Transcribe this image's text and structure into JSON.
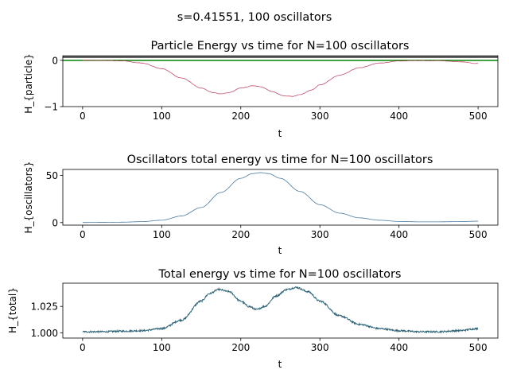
{
  "suptitle": "s=0.41551, 100 oscillators",
  "chart_data": [
    {
      "type": "line",
      "title": "Particle Energy vs time for N=100 oscillators",
      "xlabel": "t",
      "ylabel": "H_{particle}",
      "xlim": [
        -25,
        525
      ],
      "ylim": [
        -1,
        0.1
      ],
      "xticks": [
        0,
        100,
        200,
        300,
        400,
        500
      ],
      "yticks": [
        -1,
        0
      ],
      "grid": false,
      "hlines": [
        {
          "y": 0.07,
          "color": "#000000"
        },
        {
          "y": 0.0,
          "color": "#008000"
        }
      ],
      "series": [
        {
          "color": "#c44e6a",
          "x": [
            0,
            25,
            50,
            75,
            100,
            125,
            150,
            165,
            175,
            185,
            200,
            215,
            225,
            240,
            255,
            265,
            275,
            290,
            300,
            325,
            350,
            375,
            400,
            425,
            450,
            475,
            500
          ],
          "y": [
            -0.001,
            -0.003,
            -0.012,
            -0.06,
            -0.18,
            -0.38,
            -0.6,
            -0.7,
            -0.725,
            -0.7,
            -0.6,
            -0.55,
            -0.57,
            -0.68,
            -0.77,
            -0.78,
            -0.74,
            -0.64,
            -0.53,
            -0.32,
            -0.16,
            -0.06,
            -0.015,
            -0.005,
            -0.01,
            -0.03,
            -0.07
          ]
        }
      ]
    },
    {
      "type": "line",
      "title": "Oscillators total energy vs time for N=100 oscillators",
      "xlabel": "t",
      "ylabel": "H_{oscillators}",
      "xlim": [
        -25,
        525
      ],
      "ylim": [
        -2.7,
        56.4
      ],
      "xticks": [
        0,
        100,
        200,
        300,
        400,
        500
      ],
      "yticks": [
        0,
        50
      ],
      "grid": false,
      "series": [
        {
          "color": "#4a7aa0",
          "x": [
            0,
            25,
            50,
            75,
            100,
            125,
            150,
            175,
            200,
            215,
            225,
            235,
            250,
            275,
            300,
            325,
            350,
            375,
            400,
            425,
            450,
            475,
            500
          ],
          "y": [
            0.1,
            0.2,
            0.4,
            1.0,
            2.5,
            7.0,
            16.0,
            32.0,
            47.0,
            52.0,
            53.0,
            52.0,
            47.0,
            33.0,
            19.0,
            10.0,
            5.0,
            2.5,
            1.2,
            0.8,
            0.8,
            1.0,
            1.5
          ]
        }
      ]
    },
    {
      "type": "line",
      "title": "Total energy vs time for N=100 oscillators",
      "xlabel": "t",
      "ylabel": "H_{total}",
      "xlim": [
        -25,
        525
      ],
      "ylim": [
        0.995,
        1.047
      ],
      "xticks": [
        0,
        100,
        200,
        300,
        400,
        500
      ],
      "yticks": [
        1.0,
        1.025
      ],
      "ytick_labels": [
        "1.000",
        "1.025"
      ],
      "grid": false,
      "series": [
        {
          "color": "#2e6478",
          "noisy": true,
          "x": [
            0,
            25,
            50,
            75,
            100,
            125,
            150,
            160,
            172,
            185,
            200,
            210,
            220,
            230,
            245,
            258,
            270,
            285,
            300,
            325,
            350,
            375,
            400,
            425,
            450,
            475,
            500
          ],
          "y": [
            1.001,
            1.001,
            1.0015,
            1.002,
            1.004,
            1.012,
            1.03,
            1.037,
            1.041,
            1.039,
            1.03,
            1.025,
            1.022,
            1.025,
            1.035,
            1.041,
            1.043,
            1.039,
            1.03,
            1.016,
            1.008,
            1.004,
            1.002,
            1.001,
            1.001,
            1.002,
            1.004
          ]
        }
      ]
    }
  ]
}
